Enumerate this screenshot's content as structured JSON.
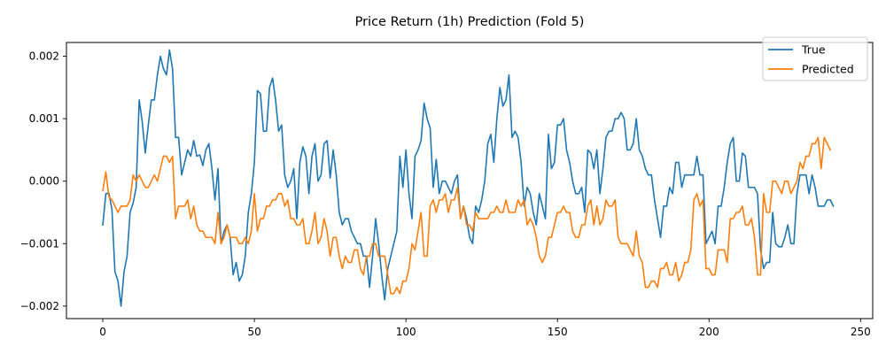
{
  "chart_data": {
    "type": "line",
    "title": "Price Return (1h) Prediction (Fold 5)",
    "xlabel": "",
    "ylabel": "",
    "xlim": [
      -12,
      254
    ],
    "ylim": [
      -0.0022,
      0.00222
    ],
    "xticks": [
      0,
      50,
      100,
      150,
      200,
      250
    ],
    "xtick_labels": [
      "0",
      "50",
      "100",
      "150",
      "200",
      "250"
    ],
    "yticks": [
      -0.002,
      -0.001,
      0.0,
      0.001,
      0.002
    ],
    "ytick_labels": [
      "−0.002",
      "−0.001",
      "0.000",
      "0.001",
      "0.002"
    ],
    "grid": false,
    "legend_position": "top-right",
    "series": [
      {
        "name": "True",
        "color": "#1f77b4",
        "values": [
          -0.0007,
          -0.0002,
          -0.00019,
          -0.00045,
          -0.00145,
          -0.0016,
          -0.002,
          -0.00145,
          -0.0012,
          -0.0005,
          -0.00035,
          -0.0001,
          0.0013,
          0.00095,
          0.00045,
          0.0009,
          0.0013,
          0.0013,
          0.0017,
          0.002,
          0.0018,
          0.0017,
          0.0021,
          0.0018,
          0.0007,
          0.0007,
          0.0001,
          0.0003,
          0.0005,
          0.0004,
          0.00065,
          0.0004,
          0.00042,
          0.00025,
          0.0005,
          0.0006,
          0.0002,
          -0.0003,
          0.0002,
          -0.001,
          -0.0008,
          -0.0007,
          -0.0009,
          -0.0015,
          -0.0013,
          -0.0016,
          -0.0015,
          -0.0012,
          -0.0005,
          -0.0002,
          0.0003,
          0.00145,
          0.0014,
          0.0008,
          0.0008,
          0.0015,
          0.00165,
          0.0013,
          0.0008,
          0.0009,
          0.0001,
          -0.0001,
          0.0,
          0.0002,
          -0.0006,
          0.0003,
          0.00055,
          0.0004,
          -0.0002,
          0.0004,
          0.0006,
          0.0,
          0.0001,
          0.0006,
          0.00065,
          5e-05,
          0.0005,
          0.0001,
          -0.0005,
          -0.0007,
          -0.0006,
          -0.0006,
          -0.0008,
          -0.0009,
          -0.001,
          -0.001,
          -0.0012,
          -0.0012,
          -0.0017,
          -0.0012,
          -0.0006,
          -0.001,
          -0.0015,
          -0.0019,
          -0.0014,
          -0.0012,
          -0.001,
          -0.0008,
          0.0004,
          -0.0001,
          0.0005,
          -0.0002,
          -0.0006,
          0.0004,
          0.0005,
          0.00065,
          0.00125,
          0.001,
          0.00085,
          -0.0001,
          0.00035,
          -0.0002,
          0.0,
          0.0,
          -0.0001,
          -0.0002,
          0.0,
          0.0001,
          -0.0006,
          -0.0004,
          -0.0006,
          -0.0009,
          -0.001,
          -0.0004,
          -0.0005,
          -0.0003,
          0.0,
          0.0006,
          0.00075,
          0.0003,
          0.001,
          0.0015,
          0.0012,
          0.0013,
          0.0017,
          0.0007,
          0.0008,
          0.0007,
          0.0003,
          -0.0004,
          -0.0001,
          -0.0002,
          -0.0005,
          -0.0007,
          -0.0002,
          -0.0004,
          -0.0006,
          0.00075,
          0.0002,
          0.0003,
          0.0009,
          0.0009,
          0.001,
          0.0005,
          0.0003,
          0.0,
          -0.0002,
          -0.0002,
          -0.0001,
          -0.0005,
          0.0005,
          0.00045,
          0.0002,
          0.0005,
          -0.0002,
          0.0002,
          0.0007,
          0.0008,
          0.0008,
          0.001,
          0.001,
          0.0011,
          0.001,
          0.0005,
          0.0005,
          0.0006,
          0.001,
          0.0005,
          0.0004,
          0.0002,
          0.0001,
          0.0001,
          -0.0003,
          -0.0006,
          -0.0009,
          -0.0004,
          -0.0004,
          -0.0001,
          -0.0002,
          0.0003,
          0.0003,
          -0.0001,
          0.0001,
          0.0001,
          0.0001,
          0.0001,
          0.0004,
          0.0001,
          0.0001,
          -0.001,
          -0.0009,
          -0.0008,
          -0.001,
          -0.0004,
          -0.0004,
          -0.0001,
          0.0003,
          0.0006,
          0.0007,
          0.0,
          0.0,
          0.00045,
          0.0004,
          -0.0001,
          -0.0001,
          -0.0001,
          -0.0002,
          -0.0011,
          -0.0014,
          -0.0013,
          -0.0013,
          -0.0005,
          -0.001,
          -0.00105,
          -0.00105,
          -0.0009,
          -0.0007,
          -0.001,
          -0.001,
          -0.0002,
          0.0001,
          0.0001,
          0.0001,
          -0.0002,
          0.0001,
          -0.0001,
          -0.0004,
          -0.0004,
          -0.0004,
          -0.0003,
          -0.0003,
          -0.0004
        ]
      },
      {
        "name": "Predicted",
        "color": "#ff7f0e",
        "values": [
          -0.00015,
          0.00015,
          -0.00025,
          -0.0003,
          -0.0004,
          -0.0005,
          -0.0004,
          -0.0004,
          -0.0004,
          -0.0003,
          0.0001,
          0.0,
          0.0001,
          0.0,
          -0.0001,
          -0.0001,
          0.0,
          0.0001,
          0.0,
          0.0002,
          0.0004,
          0.0004,
          0.0003,
          0.0004,
          -0.0006,
          -0.0004,
          -0.0004,
          -0.0004,
          -0.0003,
          -0.0006,
          -0.0004,
          -0.0007,
          -0.0008,
          -0.0008,
          -0.0009,
          -0.0009,
          -0.0009,
          -0.001,
          -0.0005,
          -0.001,
          -0.0009,
          -0.0007,
          -0.0009,
          -0.0009,
          -0.0009,
          -0.001,
          -0.001,
          -0.0009,
          -0.001,
          -0.0008,
          -0.0002,
          -0.0008,
          -0.0006,
          -0.0006,
          -0.0004,
          -0.0004,
          -0.0003,
          -0.0003,
          -0.0002,
          -0.0002,
          -0.0004,
          -0.0003,
          -0.0006,
          -0.0006,
          -0.0007,
          -0.0007,
          -0.0006,
          -0.001,
          -0.001,
          -0.0008,
          -0.0005,
          -0.001,
          -0.0009,
          -0.0006,
          -0.0008,
          -0.0012,
          -0.0009,
          -0.0009,
          -0.0012,
          -0.0014,
          -0.0012,
          -0.0013,
          -0.0013,
          -0.0011,
          -0.0011,
          -0.0014,
          -0.0015,
          -0.0012,
          -0.0012,
          -0.001,
          -0.001,
          -0.0012,
          -0.0012,
          -0.0012,
          -0.0015,
          -0.0018,
          -0.0018,
          -0.0017,
          -0.0018,
          -0.0016,
          -0.0016,
          -0.0014,
          -0.001,
          -0.0011,
          -0.0008,
          -0.0005,
          -0.0012,
          -0.0012,
          -0.0004,
          -0.0003,
          -0.0005,
          -0.0003,
          -0.0003,
          -0.0002,
          -0.0005,
          -0.0003,
          -0.0003,
          -0.0001,
          -0.0006,
          -0.0004,
          -0.0007,
          -0.0007,
          -0.0008,
          -0.0005,
          -0.0006,
          -0.0006,
          -0.0006,
          -0.0006,
          -0.0005,
          -0.0005,
          -0.0004,
          -0.0005,
          -0.0005,
          -0.0003,
          -0.0005,
          -0.0005,
          -0.0005,
          -0.0003,
          -0.0004,
          -0.0003,
          -0.0007,
          -0.0006,
          -0.0007,
          -0.0009,
          -0.0012,
          -0.0013,
          -0.0012,
          -0.0009,
          -0.0009,
          -0.0007,
          -0.0005,
          -0.0005,
          -0.0004,
          -0.0005,
          -0.0005,
          -0.0008,
          -0.0009,
          -0.0009,
          -0.0007,
          -0.0007,
          -0.0004,
          -0.0003,
          -0.0007,
          -0.0004,
          -0.0007,
          -0.0006,
          -0.0003,
          -0.0004,
          -0.0004,
          -0.0003,
          -0.0009,
          -0.001,
          -0.001,
          -0.001,
          -0.0011,
          -0.0012,
          -0.0008,
          -0.0012,
          -0.0013,
          -0.0017,
          -0.0017,
          -0.0016,
          -0.0016,
          -0.0017,
          -0.0014,
          -0.0014,
          -0.0013,
          -0.0015,
          -0.0015,
          -0.0013,
          -0.0016,
          -0.0015,
          -0.0013,
          -0.0013,
          -0.0011,
          -0.0003,
          -0.0002,
          -0.0004,
          -0.0003,
          -0.0014,
          -0.0014,
          -0.0015,
          -0.0015,
          -0.0011,
          -0.0011,
          -0.0011,
          -0.0013,
          -0.0006,
          -0.0006,
          -0.0005,
          -0.0005,
          -0.0004,
          -0.0007,
          -0.0007,
          -0.0006,
          -0.0009,
          -0.0015,
          -0.0015,
          -0.0002,
          -0.0005,
          -0.0005,
          0.0,
          0.0,
          -0.0001,
          -0.0002,
          0.0,
          0.0,
          -0.0002,
          -0.0001,
          0.0,
          0.0003,
          0.0002,
          0.0004,
          0.0004,
          0.0006,
          0.0006,
          0.0007,
          0.0002,
          0.0007,
          0.0006,
          0.0005
        ]
      }
    ]
  }
}
